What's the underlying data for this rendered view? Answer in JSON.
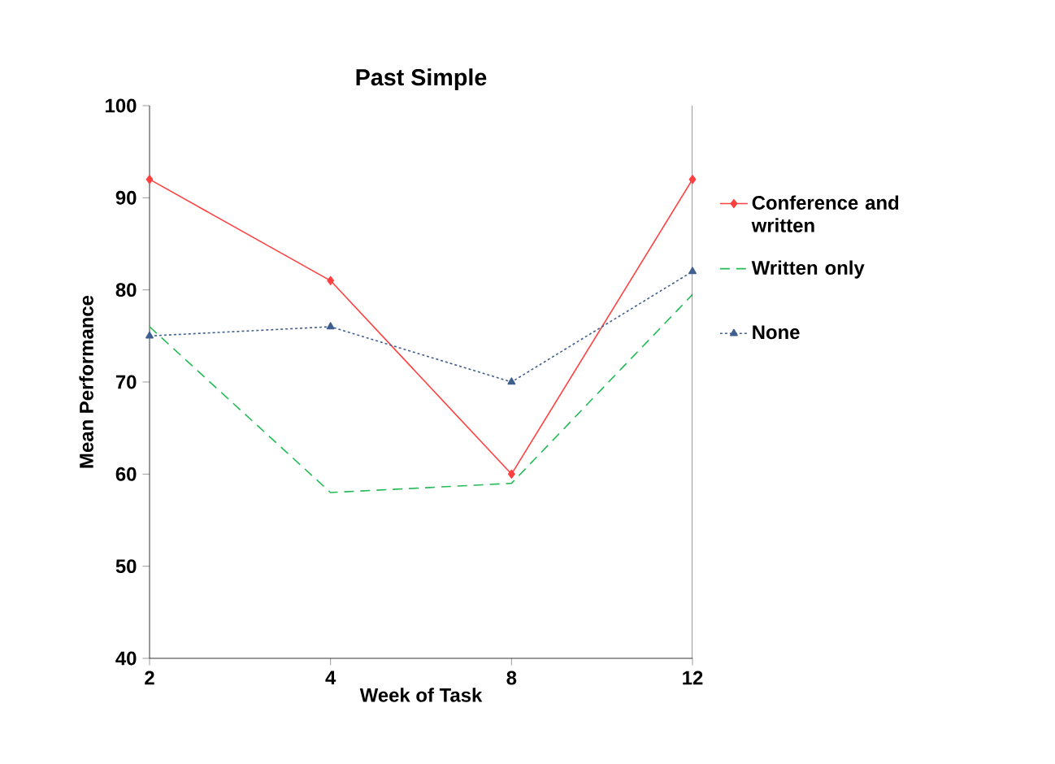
{
  "chart_data": {
    "type": "line",
    "title": "Past Simple",
    "xlabel": "Week of Task",
    "ylabel": "Mean Performance",
    "categories": [
      "2",
      "4",
      "8",
      "12"
    ],
    "series": [
      {
        "name": "Conference and written",
        "color": "#ff4040",
        "values": [
          92,
          81,
          60,
          92
        ],
        "marker": "diamond",
        "line_style": "solid"
      },
      {
        "name": "Written only",
        "color": "#22bb55",
        "values": [
          76,
          58,
          59,
          79.5
        ],
        "marker": "none",
        "line_style": "dashed"
      },
      {
        "name": "None",
        "color": "#3f5f8f",
        "values": [
          75,
          76,
          70,
          82
        ],
        "marker": "triangle",
        "line_style": "dotted"
      }
    ],
    "ylim": [
      40,
      100
    ],
    "yticks": [
      40,
      50,
      60,
      70,
      80,
      90,
      100
    ],
    "grid": false,
    "legend": "right"
  }
}
